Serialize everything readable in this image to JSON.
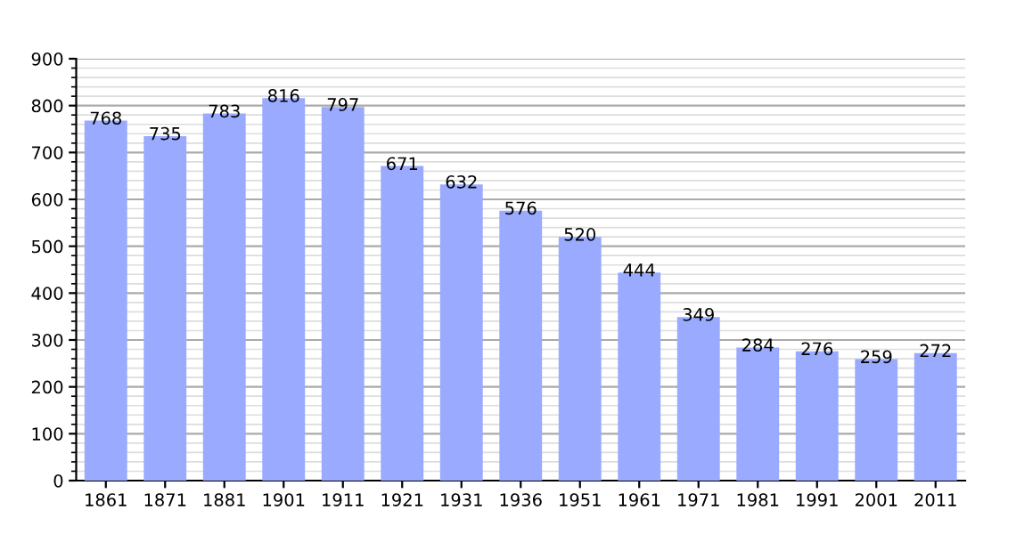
{
  "chart_data": {
    "type": "bar",
    "categories": [
      "1861",
      "1871",
      "1881",
      "1901",
      "1911",
      "1921",
      "1931",
      "1936",
      "1951",
      "1961",
      "1971",
      "1981",
      "1991",
      "2001",
      "2011"
    ],
    "values": [
      768,
      735,
      783,
      816,
      797,
      671,
      632,
      576,
      520,
      444,
      349,
      284,
      276,
      259,
      272
    ],
    "color": "#99aaff",
    "ylim": [
      0,
      900
    ],
    "yticks": [
      0,
      100,
      200,
      300,
      400,
      500,
      600,
      700,
      800,
      900
    ],
    "grid": "y",
    "data_labels": true
  }
}
